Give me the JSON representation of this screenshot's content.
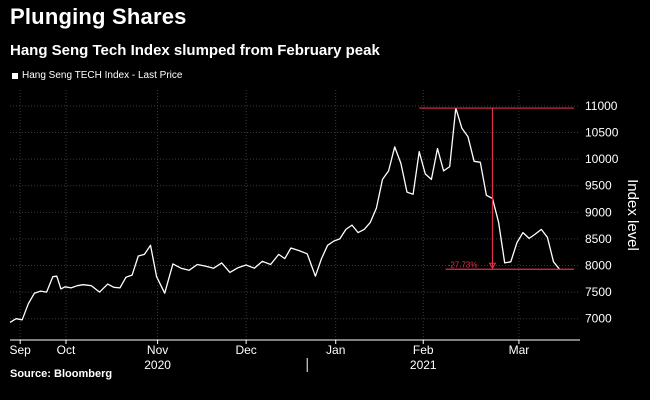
{
  "header": {
    "title": "Plunging Shares",
    "subtitle": "Hang Seng Tech Index slumped from February peak"
  },
  "legend": {
    "label": "Hang Seng TECH Index - Last Price"
  },
  "source": "Source: Bloomberg",
  "colors": {
    "background": "#000000",
    "line": "#ffffff",
    "annotation": "#e0304a",
    "grid": "#3a3a3a"
  },
  "chart_data": {
    "type": "line",
    "title": "Plunging Shares",
    "subtitle": "Hang Seng Tech Index slumped from February peak",
    "ylabel": "Index level",
    "xlabel": "",
    "ylim": [
      6600,
      11300
    ],
    "y_ticks": [
      7000,
      7500,
      8000,
      8500,
      9000,
      9500,
      10000,
      10500,
      11000
    ],
    "x_range": [
      0,
      28
    ],
    "x_ticks": [
      {
        "label": "Sep",
        "x": 0.5
      },
      {
        "label": "Oct",
        "x": 2.75
      },
      {
        "label": "Nov",
        "x": 7.25
      },
      {
        "label": "Dec",
        "x": 11.6
      },
      {
        "label": "Jan",
        "x": 16.0
      },
      {
        "label": "Feb",
        "x": 20.3
      },
      {
        "label": "Mar",
        "x": 25.0
      }
    ],
    "year_labels": [
      {
        "label": "2020",
        "x": 7.25
      },
      {
        "label": "2021",
        "x": 20.3
      }
    ],
    "series": [
      {
        "name": "Hang Seng TECH Index - Last Price",
        "x": [
          0.0,
          0.3,
          0.6,
          0.9,
          1.2,
          1.5,
          1.8,
          2.1,
          2.3,
          2.5,
          2.7,
          3.0,
          3.3,
          3.6,
          4.0,
          4.4,
          4.8,
          5.1,
          5.4,
          5.7,
          6.0,
          6.3,
          6.6,
          6.9,
          7.2,
          7.6,
          8.0,
          8.4,
          8.8,
          9.2,
          9.6,
          10.0,
          10.4,
          10.8,
          11.2,
          11.6,
          12.0,
          12.4,
          12.8,
          13.2,
          13.5,
          13.8,
          14.2,
          14.6,
          15.0,
          15.3,
          15.6,
          15.9,
          16.2,
          16.5,
          16.8,
          17.1,
          17.4,
          17.7,
          18.0,
          18.3,
          18.6,
          18.9,
          19.2,
          19.5,
          19.8,
          20.1,
          20.4,
          20.7,
          21.0,
          21.3,
          21.6,
          21.9,
          22.2,
          22.5,
          22.8,
          23.1,
          23.4,
          23.7,
          24.0,
          24.3,
          24.6,
          24.9,
          25.2,
          25.5,
          25.8,
          26.1,
          26.4,
          26.7,
          27.0
        ],
        "values": [
          6930,
          7000,
          6980,
          7280,
          7480,
          7520,
          7500,
          7790,
          7800,
          7560,
          7600,
          7580,
          7620,
          7640,
          7620,
          7500,
          7650,
          7590,
          7580,
          7780,
          7820,
          8180,
          8210,
          8380,
          7790,
          7480,
          8030,
          7950,
          7910,
          8020,
          7990,
          7950,
          8050,
          7870,
          7960,
          8010,
          7950,
          8080,
          8020,
          8210,
          8130,
          8330,
          8280,
          8220,
          7800,
          8130,
          8380,
          8460,
          8500,
          8680,
          8760,
          8620,
          8680,
          8810,
          9080,
          9620,
          9780,
          10230,
          9920,
          9380,
          9340,
          10140,
          9720,
          9620,
          10200,
          9780,
          9860,
          10960,
          10580,
          10420,
          9960,
          9940,
          9320,
          9260,
          8810,
          8050,
          8070,
          8430,
          8620,
          8510,
          8590,
          8680,
          8530,
          8070,
          7930
        ]
      }
    ],
    "annotations": {
      "peak_value": 10960,
      "trough_value": 7930,
      "peak_x": 20.1,
      "drop_x": 23.7,
      "change_label": "-27.73%"
    }
  }
}
